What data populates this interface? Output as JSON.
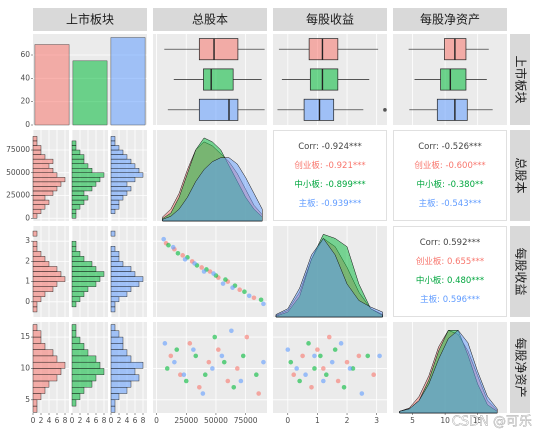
{
  "variables": [
    "上市板块",
    "总股本",
    "每股收益",
    "每股净资产"
  ],
  "group_colors": [
    "#F8766D",
    "#00BA38",
    "#619CFF"
  ],
  "watermark": "CSDN @可乐",
  "xaxes": [
    {
      "xlim": [
        0,
        9
      ],
      "xticks": [
        0,
        2,
        4,
        6,
        8
      ]
    },
    {
      "xlim": [
        -3000,
        93000
      ],
      "xticks": [
        0,
        25000,
        50000,
        75000
      ]
    },
    {
      "xlim": [
        -0.5,
        3.35
      ],
      "xticks": [
        0,
        1,
        2,
        3
      ]
    },
    {
      "xlim": [
        2,
        19.5
      ],
      "xticks": [
        5,
        10,
        15
      ]
    }
  ],
  "yaxes": [
    {
      "ylim": [
        0,
        78
      ],
      "yticks": [
        0,
        20,
        40,
        60
      ]
    },
    {
      "ylim": [
        -3000,
        97000
      ],
      "yticks": [
        0,
        25000,
        50000,
        75000
      ]
    },
    {
      "ylim": [
        -0.75,
        3.75
      ],
      "yticks": [
        0,
        1,
        2,
        3
      ]
    },
    {
      "ylim": [
        2.9,
        17.4
      ],
      "yticks": [
        5,
        10,
        15
      ]
    }
  ],
  "chart_data": [
    {
      "type": "bar",
      "values": [
        69,
        55,
        75
      ]
    },
    {
      "type": "box",
      "series": [
        {
          "values": [
            6500,
            36000,
            48400,
            68500,
            91000
          ]
        },
        {
          "values": [
            14500,
            39500,
            46000,
            64500,
            88500
          ]
        },
        {
          "values": [
            9500,
            36000,
            61000,
            68500,
            91000
          ]
        }
      ]
    },
    {
      "type": "box",
      "series": [
        {
          "values": [
            -0.3,
            0.72,
            1.17,
            1.69,
            3.05
          ]
        },
        {
          "values": [
            -0.2,
            0.76,
            1.17,
            1.69,
            2.75
          ]
        },
        {
          "values": [
            -0.35,
            0.55,
            1.07,
            1.55,
            2.55
          ],
          "outliers": [
            3.28
          ]
        }
      ]
    },
    {
      "type": "box",
      "series": [
        {
          "values": [
            4.4,
            9.9,
            11.5,
            13.2,
            16.7
          ]
        },
        {
          "values": [
            5.3,
            9.3,
            10.8,
            13.2,
            16.4
          ]
        },
        {
          "values": [
            4.5,
            8.8,
            11.5,
            13.4,
            17.3
          ]
        }
      ]
    },
    {
      "type": "histogram",
      "bins": [
        0,
        5000,
        10000,
        15000,
        20000,
        25000,
        30000,
        35000,
        40000,
        45000,
        50000,
        55000,
        60000,
        65000,
        70000,
        75000,
        80000,
        85000,
        90000
      ],
      "series": [
        {
          "values": [
            1,
            2,
            3,
            4,
            3,
            5,
            6,
            7,
            8,
            6,
            5,
            4,
            5,
            3,
            2,
            2,
            1,
            1
          ]
        },
        {
          "values": [
            1,
            1,
            2,
            3,
            4,
            3,
            5,
            6,
            7,
            8,
            5,
            4,
            3,
            3,
            2,
            1,
            1,
            0
          ]
        },
        {
          "values": [
            0,
            1,
            2,
            2,
            3,
            4,
            5,
            4,
            6,
            8,
            7,
            6,
            5,
            4,
            3,
            2,
            1,
            1
          ]
        }
      ]
    },
    {
      "type": "density",
      "ylim": [
        0,
        1.15
      ],
      "x": [
        5000,
        12000,
        19000,
        26000,
        33000,
        40000,
        47000,
        54000,
        61000,
        68000,
        75000,
        82000,
        89000
      ],
      "series": [
        {
          "values": [
            0.05,
            0.15,
            0.35,
            0.65,
            0.9,
            1.0,
            0.95,
            0.85,
            0.75,
            0.6,
            0.4,
            0.2,
            0.08
          ]
        },
        {
          "values": [
            0.03,
            0.1,
            0.3,
            0.6,
            0.9,
            1.05,
            1.0,
            0.9,
            0.7,
            0.5,
            0.3,
            0.15,
            0.05
          ]
        },
        {
          "values": [
            0.02,
            0.06,
            0.15,
            0.3,
            0.5,
            0.65,
            0.75,
            0.8,
            0.8,
            0.72,
            0.55,
            0.35,
            0.15
          ]
        }
      ]
    },
    {
      "type": "correlation",
      "labels": [
        "Corr: -0.924***",
        "创业板: -0.921***",
        "中小板: -0.899***",
        "主板: -0.939***"
      ],
      "label_colors": [
        "#444444",
        "#F8766D",
        "#00A63E",
        "#619CFF"
      ]
    },
    {
      "type": "correlation",
      "labels": [
        "Corr: -0.526***",
        "创业板: -0.600***",
        "中小板: -0.380**",
        "主板: -0.543***"
      ],
      "label_colors": [
        "#444444",
        "#F8766D",
        "#00A63E",
        "#619CFF"
      ]
    },
    {
      "type": "histogram",
      "bins": [
        -0.5,
        -0.25,
        0,
        0.25,
        0.5,
        0.75,
        1,
        1.25,
        1.5,
        1.75,
        2,
        2.25,
        2.5,
        2.75,
        3,
        3.25,
        3.5
      ],
      "series": [
        {
          "values": [
            1,
            1,
            2,
            3,
            5,
            6,
            8,
            7,
            6,
            4,
            3,
            2,
            1,
            1,
            0,
            1
          ]
        },
        {
          "values": [
            0,
            1,
            2,
            3,
            4,
            6,
            7,
            8,
            6,
            5,
            3,
            2,
            1,
            1,
            0,
            0
          ]
        },
        {
          "values": [
            1,
            1,
            2,
            4,
            5,
            7,
            8,
            6,
            5,
            3,
            2,
            2,
            1,
            0,
            0,
            1
          ]
        }
      ]
    },
    {
      "type": "scatter",
      "series": [
        {
          "x": [
            8000,
            15000,
            22000,
            30000,
            38000,
            45000,
            52000,
            60000,
            70000,
            82000
          ],
          "values": [
            2.9,
            2.6,
            2.3,
            2.0,
            1.7,
            1.5,
            1.2,
            1.0,
            0.6,
            0.2
          ]
        },
        {
          "x": [
            10000,
            18000,
            26000,
            34000,
            42000,
            50000,
            58000,
            66000,
            74000,
            88000
          ],
          "values": [
            2.8,
            2.4,
            2.2,
            1.8,
            1.6,
            1.3,
            1.1,
            0.8,
            0.5,
            0.1
          ]
        },
        {
          "x": [
            6000,
            14000,
            24000,
            32000,
            40000,
            48000,
            56000,
            64000,
            78000,
            90000
          ],
          "values": [
            3.1,
            2.7,
            2.1,
            1.9,
            1.5,
            1.4,
            0.9,
            0.7,
            0.3,
            -0.1
          ]
        }
      ]
    },
    {
      "type": "density",
      "ylim": [
        0,
        1.1
      ],
      "x": [
        -0.4,
        0,
        0.4,
        0.8,
        1.2,
        1.6,
        2.0,
        2.4,
        2.8,
        3.2
      ],
      "series": [
        {
          "values": [
            0.02,
            0.08,
            0.3,
            0.7,
            0.95,
            0.85,
            0.6,
            0.3,
            0.1,
            0.03
          ]
        },
        {
          "values": [
            0.01,
            0.06,
            0.25,
            0.7,
            1.0,
            0.95,
            0.85,
            0.4,
            0.1,
            0.02
          ]
        },
        {
          "values": [
            0.03,
            0.1,
            0.35,
            0.75,
            0.95,
            0.75,
            0.4,
            0.2,
            0.12,
            0.06
          ]
        }
      ]
    },
    {
      "type": "correlation",
      "labels": [
        "Corr: 0.592***",
        "创业板: 0.655***",
        "中小板: 0.480***",
        "主板: 0.596***"
      ],
      "label_colors": [
        "#444444",
        "#F8766D",
        "#00A63E",
        "#619CFF"
      ]
    },
    {
      "type": "histogram",
      "bins": [
        3,
        4,
        5,
        6,
        7,
        8,
        9,
        10,
        11,
        12,
        13,
        14,
        15,
        16,
        17
      ],
      "series": [
        {
          "values": [
            1,
            1,
            2,
            3,
            4,
            6,
            7,
            8,
            6,
            5,
            3,
            2,
            2,
            1
          ]
        },
        {
          "values": [
            0,
            1,
            2,
            3,
            5,
            6,
            8,
            7,
            6,
            4,
            3,
            2,
            1,
            1
          ]
        },
        {
          "values": [
            1,
            1,
            2,
            4,
            5,
            7,
            6,
            8,
            5,
            4,
            3,
            3,
            2,
            1
          ]
        }
      ]
    },
    {
      "type": "scatter",
      "series": [
        {
          "x": [
            12000,
            20000,
            28000,
            36000,
            44000,
            52000,
            60000,
            68000,
            76000,
            86000
          ],
          "values": [
            12,
            9,
            14,
            7,
            11,
            13,
            8,
            10,
            15,
            6
          ]
        },
        {
          "x": [
            9000,
            17000,
            25000,
            33000,
            41000,
            49000,
            57000,
            65000,
            73000,
            84000
          ],
          "values": [
            10,
            13,
            8,
            12,
            9,
            15,
            11,
            7,
            12,
            9
          ]
        },
        {
          "x": [
            7000,
            15000,
            23000,
            31000,
            39000,
            47000,
            55000,
            63000,
            71000,
            90000
          ],
          "values": [
            14,
            11,
            9,
            13,
            6,
            10,
            12,
            16,
            8,
            11
          ]
        }
      ]
    },
    {
      "type": "scatter",
      "series": [
        {
          "x": [
            0.2,
            0.5,
            0.8,
            1.0,
            1.2,
            1.4,
            1.7,
            2.0,
            2.4,
            2.9
          ],
          "values": [
            9,
            12,
            7,
            13,
            10,
            15,
            8,
            11,
            12,
            9
          ]
        },
        {
          "x": [
            0.1,
            0.4,
            0.7,
            0.9,
            1.1,
            1.3,
            1.6,
            1.9,
            2.2,
            2.7
          ],
          "values": [
            11,
            8,
            14,
            10,
            12,
            9,
            13,
            7,
            10,
            12
          ]
        },
        {
          "x": [
            0,
            0.3,
            0.6,
            0.9,
            1.2,
            1.5,
            1.8,
            2.1,
            2.5,
            3.1
          ],
          "values": [
            13,
            10,
            9,
            12,
            8,
            11,
            14,
            10,
            6,
            12
          ]
        }
      ]
    },
    {
      "type": "density",
      "ylim": [
        0,
        1.1
      ],
      "x": [
        3,
        4.5,
        6,
        7.5,
        9,
        10.5,
        12,
        13.5,
        15,
        16.5,
        18
      ],
      "series": [
        {
          "values": [
            0.02,
            0.06,
            0.2,
            0.45,
            0.8,
            1.0,
            0.95,
            0.75,
            0.45,
            0.15,
            0.03
          ]
        },
        {
          "values": [
            0.02,
            0.05,
            0.15,
            0.4,
            0.75,
            1.0,
            1.0,
            0.7,
            0.35,
            0.1,
            0.02
          ]
        },
        {
          "values": [
            0.02,
            0.05,
            0.15,
            0.35,
            0.65,
            0.9,
            1.0,
            0.85,
            0.5,
            0.2,
            0.05
          ]
        }
      ]
    }
  ]
}
